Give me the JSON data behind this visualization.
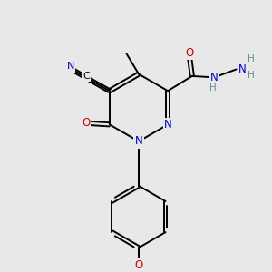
{
  "background_color": "#e8e8e8",
  "figsize": [
    3.0,
    3.0
  ],
  "dpi": 100,
  "bond_lw": 1.4,
  "colors": {
    "N": "#0000cc",
    "O": "#cc0000",
    "C": "#000000",
    "H": "#5f8f8f"
  },
  "font_size": 8.5,
  "font_size_small": 7.5
}
